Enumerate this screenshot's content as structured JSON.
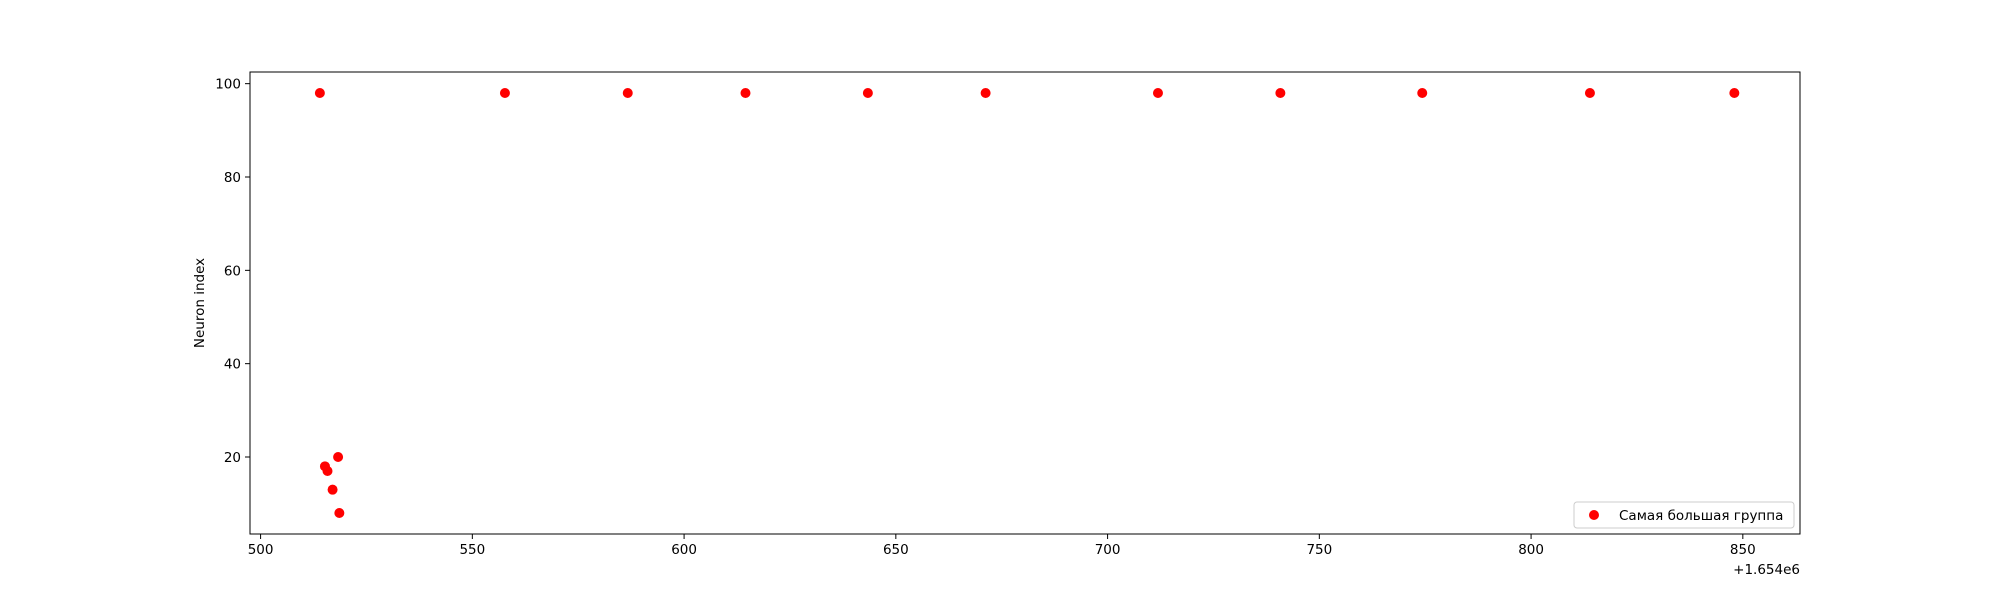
{
  "chart_data": {
    "type": "scatter",
    "title": "",
    "xlabel": "",
    "ylabel": "Neuron index",
    "x_offset_label": "+1.654e6",
    "xlim": [
      1654497.5,
      1654863.5
    ],
    "ylim": [
      3.5,
      102.5
    ],
    "xticks": [
      500,
      550,
      600,
      650,
      700,
      750,
      800,
      850
    ],
    "yticks": [
      20,
      40,
      60,
      80,
      100
    ],
    "grid": false,
    "legend_position": "lower-right",
    "series": [
      {
        "name": "Самая большая группа",
        "color": "#ff0000",
        "points": [
          {
            "x": 514.0,
            "y": 98
          },
          {
            "x": 557.7,
            "y": 98
          },
          {
            "x": 586.7,
            "y": 98
          },
          {
            "x": 614.5,
            "y": 98
          },
          {
            "x": 643.4,
            "y": 98
          },
          {
            "x": 671.2,
            "y": 98
          },
          {
            "x": 711.9,
            "y": 98
          },
          {
            "x": 740.8,
            "y": 98
          },
          {
            "x": 774.3,
            "y": 98
          },
          {
            "x": 813.9,
            "y": 98
          },
          {
            "x": 848.0,
            "y": 98
          },
          {
            "x": 515.2,
            "y": 18
          },
          {
            "x": 515.8,
            "y": 17
          },
          {
            "x": 517.0,
            "y": 13
          },
          {
            "x": 518.3,
            "y": 20
          },
          {
            "x": 518.6,
            "y": 8
          }
        ]
      }
    ]
  }
}
